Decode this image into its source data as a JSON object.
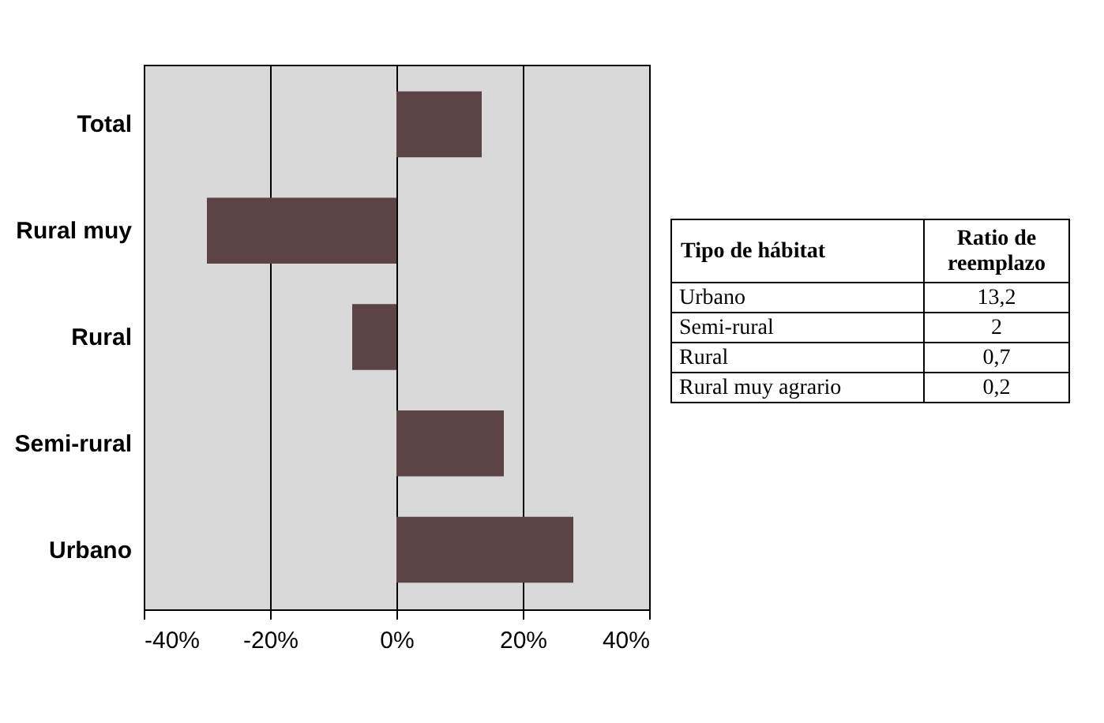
{
  "chart_data": [
    {
      "type": "bar",
      "orientation": "horizontal",
      "categories": [
        "Total",
        "Rural muy",
        "Rural",
        "Semi-rural",
        "Urbano"
      ],
      "values": [
        13.5,
        -30,
        -7,
        17,
        28
      ],
      "color": "#5c4446",
      "xlim": [
        -40,
        40
      ],
      "xticks": [
        {
          "value": -40,
          "label": "-40%"
        },
        {
          "value": -20,
          "label": "-20%"
        },
        {
          "value": 0,
          "label": "0%"
        },
        {
          "value": 20,
          "label": "20%"
        },
        {
          "value": 40,
          "label": "40%"
        }
      ],
      "grid": "x"
    },
    {
      "type": "other",
      "xlabel": "Tipo de hábitat",
      "ylabel": "Ratio de reemplazo",
      "categories": [
        "Urbano",
        "Semi-rural",
        "Rural",
        "Rural muy agrario"
      ],
      "values": [
        13.2,
        2,
        0.7,
        0.2
      ],
      "value_labels": [
        "13,2",
        "2",
        "0,7",
        "0,2"
      ]
    }
  ]
}
